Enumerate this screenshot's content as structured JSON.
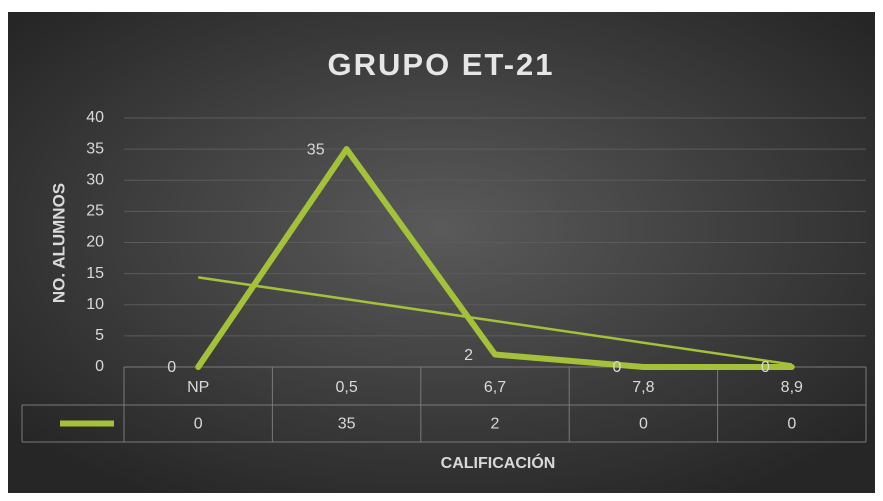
{
  "chart_data": {
    "type": "line",
    "title": "GRUPO ET-21",
    "x_label": "CALIFICACIÓN",
    "y_label": "NO.  ALUMNOS",
    "categories": [
      "NP",
      "0,5",
      "6,7",
      "7,8",
      "8,9"
    ],
    "series": [
      {
        "color": "#a4c13a",
        "values": [
          0,
          35,
          2,
          0,
          0
        ]
      }
    ],
    "trendline": "linear",
    "data_table": true,
    "ylim": [
      0,
      40
    ],
    "yticks": [
      0,
      5,
      10,
      15,
      20,
      25,
      30,
      35,
      40
    ],
    "grid": true
  }
}
